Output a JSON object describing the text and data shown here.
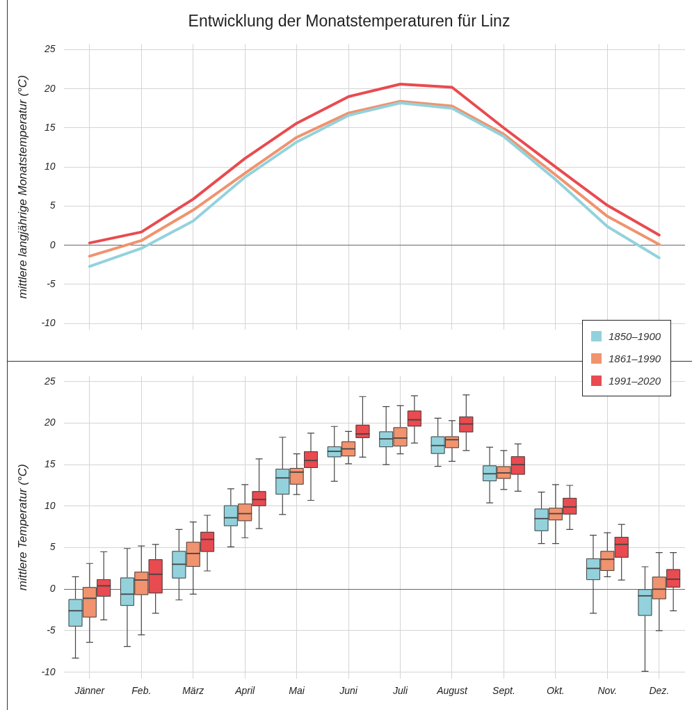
{
  "chart_data": [
    {
      "type": "line",
      "title": "Entwicklung der Monatstemperaturen für Linz",
      "ylabel": "mittlere langjährige Monatstemperatur (°C)",
      "categories": [
        null,
        null,
        null,
        null,
        null,
        null,
        null,
        null,
        null,
        null,
        null,
        null
      ],
      "ylim": [
        -10.8,
        25.7
      ],
      "yticks": [
        -10,
        -5,
        0,
        5,
        10,
        15,
        20,
        25
      ],
      "grid": true,
      "marker": "none",
      "line_style": "solid",
      "series": [
        {
          "color": "#93d2dc",
          "values": [
            -2.7,
            -0.4,
            3.1,
            8.7,
            13.2,
            16.6,
            18.2,
            17.5,
            13.9,
            8.4,
            2.4,
            -1.6
          ]
        },
        {
          "color": "#f0936e",
          "values": [
            -1.4,
            0.6,
            4.5,
            9.2,
            13.8,
            16.9,
            18.4,
            17.8,
            14.2,
            9.0,
            3.7,
            0.1
          ]
        },
        {
          "color": "#e84b50",
          "values": [
            0.3,
            1.7,
            5.9,
            11.1,
            15.6,
            19.0,
            20.6,
            20.2,
            15.0,
            10.0,
            5.1,
            1.3
          ]
        }
      ]
    },
    {
      "type": "box",
      "ylabel": "mittlere Temperatur (°C)",
      "categories": [
        "Jänner",
        "Feb.",
        "März",
        "April",
        "Mai",
        "Juni",
        "Juli",
        "August",
        "Sept.",
        "Okt.",
        "Nov.",
        "Dez."
      ],
      "ylim": [
        -10.8,
        25.7
      ],
      "yticks": [
        -10,
        -5,
        0,
        5,
        10,
        15,
        20,
        25
      ],
      "grid": true,
      "legend": "top right",
      "series": [
        {
          "name": "1850–1900",
          "color": "#93d2dc",
          "boxes": [
            {
              "low": -8.3,
              "q1": -4.5,
              "median": -2.6,
              "q3": -1.2,
              "high": 1.5
            },
            {
              "low": -6.9,
              "q1": -2.0,
              "median": -0.6,
              "q3": 1.4,
              "high": 4.9
            },
            {
              "low": -1.3,
              "q1": 1.3,
              "median": 3.0,
              "q3": 4.6,
              "high": 7.2
            },
            {
              "low": 5.1,
              "q1": 7.6,
              "median": 8.6,
              "q3": 10.1,
              "high": 12.1
            },
            {
              "low": 9.0,
              "q1": 11.4,
              "median": 13.4,
              "q3": 14.5,
              "high": 18.3
            },
            {
              "low": 13.0,
              "q1": 15.9,
              "median": 16.6,
              "q3": 17.2,
              "high": 19.6
            },
            {
              "low": 15.0,
              "q1": 17.1,
              "median": 18.1,
              "q3": 19.0,
              "high": 22.0
            },
            {
              "low": 14.8,
              "q1": 16.3,
              "median": 17.3,
              "q3": 18.4,
              "high": 20.6
            },
            {
              "low": 10.4,
              "q1": 13.0,
              "median": 13.9,
              "q3": 14.9,
              "high": 17.1
            },
            {
              "low": 5.5,
              "q1": 7.0,
              "median": 8.5,
              "q3": 9.7,
              "high": 11.7
            },
            {
              "low": -2.9,
              "q1": 1.1,
              "median": 2.5,
              "q3": 3.7,
              "high": 6.5
            },
            {
              "low": -9.9,
              "q1": -3.2,
              "median": -0.8,
              "q3": 0.0,
              "high": 2.7
            }
          ]
        },
        {
          "name": "1861–1990",
          "color": "#f0936e",
          "boxes": [
            {
              "low": -6.4,
              "q1": -3.4,
              "median": -1.1,
              "q3": 0.25,
              "high": 3.1
            },
            {
              "low": -5.5,
              "q1": -0.7,
              "median": 1.1,
              "q3": 2.1,
              "high": 5.2
            },
            {
              "low": -0.6,
              "q1": 2.7,
              "median": 4.3,
              "q3": 5.7,
              "high": 8.1
            },
            {
              "low": 6.2,
              "q1": 8.2,
              "median": 9.1,
              "q3": 10.3,
              "high": 12.6
            },
            {
              "low": 11.4,
              "q1": 12.6,
              "median": 14.1,
              "q3": 14.6,
              "high": 16.3
            },
            {
              "low": 15.1,
              "q1": 16.0,
              "median": 16.9,
              "q3": 17.8,
              "high": 19.0
            },
            {
              "low": 16.3,
              "q1": 17.2,
              "median": 18.2,
              "q3": 19.5,
              "high": 22.1
            },
            {
              "low": 15.4,
              "q1": 17.0,
              "median": 18.0,
              "q3": 18.4,
              "high": 20.3
            },
            {
              "low": 12.0,
              "q1": 13.3,
              "median": 14.0,
              "q3": 14.8,
              "high": 16.7
            },
            {
              "low": 5.5,
              "q1": 8.3,
              "median": 9.1,
              "q3": 9.8,
              "high": 12.6
            },
            {
              "low": 1.5,
              "q1": 2.2,
              "median": 3.6,
              "q3": 4.6,
              "high": 6.8
            },
            {
              "low": -5.0,
              "q1": -1.2,
              "median": 0.0,
              "q3": 1.5,
              "high": 4.4
            }
          ]
        },
        {
          "name": "1991–2020",
          "color": "#e84b50",
          "boxes": [
            {
              "low": -3.7,
              "q1": -0.9,
              "median": 0.4,
              "q3": 1.2,
              "high": 4.5
            },
            {
              "low": -2.9,
              "q1": -0.5,
              "median": 1.8,
              "q3": 3.6,
              "high": 5.4
            },
            {
              "low": 2.2,
              "q1": 4.5,
              "median": 6.0,
              "q3": 6.9,
              "high": 8.9
            },
            {
              "low": 7.3,
              "q1": 10.0,
              "median": 10.8,
              "q3": 11.8,
              "high": 15.7
            },
            {
              "low": 10.7,
              "q1": 14.6,
              "median": 15.5,
              "q3": 16.6,
              "high": 18.8
            },
            {
              "low": 15.9,
              "q1": 18.2,
              "median": 18.7,
              "q3": 19.8,
              "high": 23.2
            },
            {
              "low": 17.6,
              "q1": 19.6,
              "median": 20.4,
              "q3": 21.5,
              "high": 23.3
            },
            {
              "low": 16.7,
              "q1": 18.9,
              "median": 19.9,
              "q3": 20.8,
              "high": 23.4
            },
            {
              "low": 11.8,
              "q1": 13.8,
              "median": 15.0,
              "q3": 16.0,
              "high": 17.5
            },
            {
              "low": 7.2,
              "q1": 9.0,
              "median": 9.9,
              "q3": 11.0,
              "high": 12.5
            },
            {
              "low": 1.1,
              "q1": 3.8,
              "median": 5.4,
              "q3": 6.3,
              "high": 7.8
            },
            {
              "low": -2.6,
              "q1": 0.2,
              "median": 1.2,
              "q3": 2.4,
              "high": 4.4
            }
          ]
        }
      ]
    }
  ]
}
